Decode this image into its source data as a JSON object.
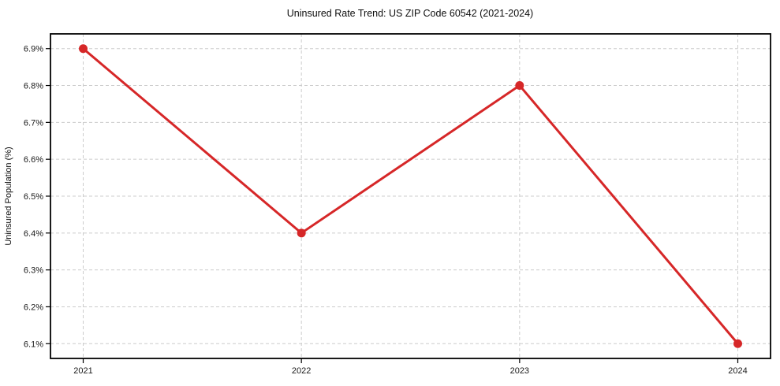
{
  "chart_data": {
    "type": "line",
    "title": "Uninsured Rate Trend: US ZIP Code 60542 (2021-2024)",
    "xlabel": "",
    "ylabel": "Uninsured Population (%)",
    "x": [
      2021,
      2022,
      2023,
      2024
    ],
    "xtick_labels": [
      "2021",
      "2022",
      "2023",
      "2024"
    ],
    "values": [
      6.9,
      6.4,
      6.8,
      6.1
    ],
    "yticks": [
      6.1,
      6.2,
      6.3,
      6.4,
      6.5,
      6.6,
      6.7,
      6.8,
      6.9
    ],
    "ytick_labels": [
      "6.1%",
      "6.2%",
      "6.3%",
      "6.4%",
      "6.5%",
      "6.6%",
      "6.7%",
      "6.8%",
      "6.9%"
    ],
    "xlim": [
      2020.85,
      2024.15
    ],
    "ylim": [
      6.06,
      6.94
    ],
    "grid": true,
    "grid_style": "dashed",
    "legend": false,
    "marker": "circle",
    "line_color": "#d62728",
    "grid_color": "#cccccc",
    "axis_color": "#000000",
    "background_color": "#ffffff"
  }
}
